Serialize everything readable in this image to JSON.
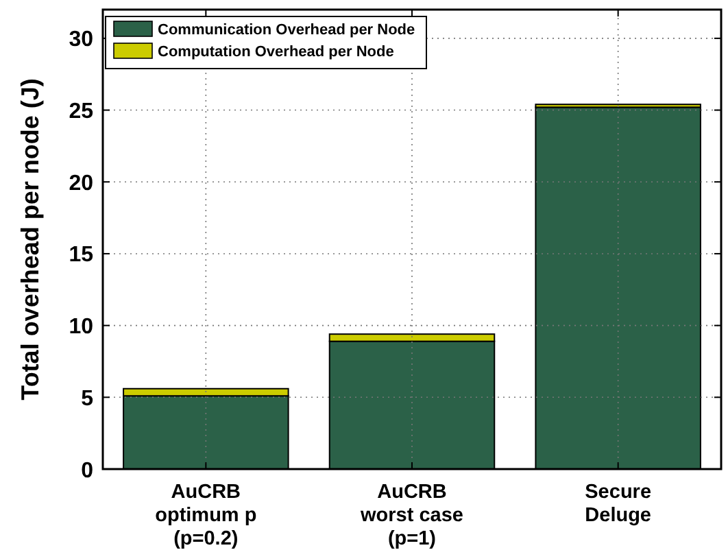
{
  "chart_data": {
    "type": "bar",
    "ylabel": "Total overhead per node (J)",
    "categories": [
      "AuCRB\noptimum p\n(p=0.2)",
      "AuCRB\nworst case\n(p=1)",
      "Secure\nDeluge"
    ],
    "series": [
      {
        "name": "Communication Overhead per Node",
        "color": "#2b6148",
        "values": [
          5.1,
          8.9,
          25.2
        ]
      },
      {
        "name": "Computation Overhead per Node",
        "color": "#cccc00",
        "values": [
          0.5,
          0.5,
          0.2
        ]
      }
    ],
    "stacked": true,
    "ylim": [
      0,
      32
    ],
    "yticks": [
      0,
      5,
      10,
      15,
      20,
      25,
      30
    ],
    "grid": true,
    "legend": "top left"
  }
}
